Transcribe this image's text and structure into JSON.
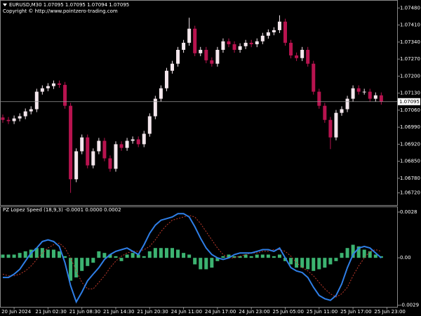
{
  "chart_data": [
    {
      "type": "candlestick",
      "title": "EURUSD,M30  1.07095 1.07095 1.07094 1.07095",
      "subtitle": "Copyright © http://www.pointzero-trading.com",
      "categories": [
        null,
        null,
        "20 Jun 2024",
        null,
        null,
        null,
        null,
        null,
        "21 Jun 02:30",
        null,
        null,
        null,
        null,
        null,
        "21 Jun 08:30",
        null,
        null,
        null,
        null,
        null,
        "21 Jun 14:30",
        null,
        null,
        null,
        null,
        null,
        "21 Jun 20:30",
        null,
        null,
        null,
        null,
        null,
        "24 Jun 11:00",
        null,
        null,
        null,
        null,
        null,
        "24 Jun 17:00",
        null,
        null,
        null,
        null,
        null,
        "24 Jun 23:00",
        null,
        null,
        null,
        null,
        null,
        "25 Jun 05:00",
        null,
        null,
        null,
        null,
        null,
        "25 Jun 11:00",
        null,
        null,
        null,
        null,
        null,
        "25 Jun 17:00",
        null,
        null,
        null,
        null,
        null,
        "25 Jun 23:00"
      ],
      "open": [
        1.0703,
        1.0702,
        1.07015,
        1.07026,
        1.07035,
        1.07055,
        1.07064,
        1.07136,
        1.0715,
        1.07159,
        1.0717,
        1.07164,
        1.07078,
        1.06776,
        1.06891,
        1.06948,
        1.06833,
        1.06891,
        1.06934,
        1.06862,
        1.06819,
        1.0692,
        1.06905,
        1.06934,
        1.0694,
        1.0692,
        1.06963,
        1.07035,
        1.07107,
        1.0715,
        1.07222,
        1.07251,
        1.07308,
        1.07337,
        1.07395,
        1.07294,
        1.07308,
        1.07265,
        1.07251,
        1.07308,
        1.07343,
        1.07331,
        1.07308,
        1.07323,
        1.07337,
        1.07331,
        1.07343,
        1.07366,
        1.0738,
        1.07389,
        1.07424,
        1.07337,
        1.07285,
        1.07274,
        1.07308,
        1.07251,
        1.07136,
        1.07078,
        1.0702,
        1.06948,
        1.07049,
        1.07064,
        1.07107,
        1.0715,
        1.07136,
        1.07136,
        1.07107,
        1.07121,
        null
      ],
      "high": [
        1.07042,
        1.07032,
        1.07038,
        1.07047,
        1.07067,
        1.07076,
        1.07148,
        1.07162,
        1.07171,
        1.07182,
        1.07182,
        1.07176,
        1.0709,
        1.06903,
        1.0696,
        1.0696,
        1.06903,
        1.06946,
        1.06946,
        1.06874,
        1.06932,
        1.06932,
        1.06946,
        1.06952,
        1.06952,
        1.06975,
        1.07047,
        1.07119,
        1.07162,
        1.07234,
        1.07263,
        1.0732,
        1.07349,
        1.0744,
        1.07407,
        1.0732,
        1.0732,
        1.07277,
        1.0732,
        1.07355,
        1.07355,
        1.07343,
        1.07335,
        1.07349,
        1.07349,
        1.07355,
        1.07378,
        1.07392,
        1.07401,
        1.0745,
        1.07436,
        1.07349,
        1.07297,
        1.0732,
        1.0732,
        1.07263,
        1.07148,
        1.0709,
        1.07032,
        1.07061,
        1.07076,
        1.07119,
        1.07162,
        1.07162,
        1.07148,
        1.07148,
        1.07133,
        1.07133,
        null
      ],
      "low": [
        1.07008,
        1.07003,
        1.07003,
        1.07014,
        1.07023,
        1.07043,
        1.07052,
        1.07124,
        1.07138,
        1.07147,
        1.07152,
        1.07066,
        1.0672,
        1.06764,
        1.06879,
        1.06821,
        1.06821,
        1.06879,
        1.0685,
        1.06807,
        1.06807,
        1.06893,
        1.06893,
        1.06922,
        1.06908,
        1.06908,
        1.06951,
        1.07023,
        1.07095,
        1.07138,
        1.0721,
        1.07239,
        1.07296,
        1.07325,
        1.07282,
        1.07282,
        1.07253,
        1.07239,
        1.07239,
        1.07296,
        1.07319,
        1.07296,
        1.07296,
        1.07311,
        1.07319,
        1.07319,
        1.07331,
        1.07354,
        1.07368,
        1.07377,
        1.07325,
        1.07273,
        1.07262,
        1.07262,
        1.07239,
        1.07124,
        1.07066,
        1.07008,
        1.069,
        1.06936,
        1.07037,
        1.07052,
        1.07095,
        1.07124,
        1.07124,
        1.07095,
        1.07095,
        1.07083,
        null
      ],
      "close": [
        1.0702,
        1.07015,
        1.07026,
        1.07035,
        1.07055,
        1.07064,
        1.07136,
        1.0715,
        1.07159,
        1.0717,
        1.07164,
        1.07078,
        1.06776,
        1.06891,
        1.06948,
        1.06833,
        1.06891,
        1.06934,
        1.06862,
        1.06819,
        1.0692,
        1.06905,
        1.06934,
        1.0694,
        1.0692,
        1.06963,
        1.07035,
        1.07107,
        1.0715,
        1.07222,
        1.07251,
        1.07308,
        1.07337,
        1.07395,
        1.07294,
        1.07308,
        1.07265,
        1.07251,
        1.07308,
        1.07343,
        1.07331,
        1.07308,
        1.07323,
        1.07337,
        1.07331,
        1.07343,
        1.07366,
        1.0738,
        1.07389,
        1.07424,
        1.07337,
        1.07285,
        1.07274,
        1.07308,
        1.07251,
        1.07136,
        1.07078,
        1.0702,
        1.06948,
        1.07049,
        1.07064,
        1.07107,
        1.0715,
        1.07136,
        1.07136,
        1.07107,
        1.07121,
        1.07095,
        null
      ],
      "up_color": "#f3e6ec",
      "down_color": "#b8134f",
      "price_line": 1.07095,
      "ylim": [
        1.0667,
        1.0751
      ],
      "yticks": [
        {
          "value": 1.0748,
          "label": "1.07480"
        },
        {
          "value": 1.0741,
          "label": "1.07410"
        },
        {
          "value": 1.0734,
          "label": "1.07340"
        },
        {
          "value": 1.0727,
          "label": "1.07270"
        },
        {
          "value": 1.072,
          "label": "1.07200"
        },
        {
          "value": 1.0713,
          "label": "1.07130"
        },
        {
          "value": 1.0706,
          "label": "1.07060"
        },
        {
          "value": 1.0699,
          "label": "1.06990"
        },
        {
          "value": 1.0692,
          "label": "1.06920"
        },
        {
          "value": 1.0685,
          "label": "1.06850"
        },
        {
          "value": 1.0678,
          "label": "1.06780"
        },
        {
          "value": 1.0672,
          "label": "1.06720"
        }
      ]
    },
    {
      "type": "indicator",
      "title": "PZ Lopez Speed (18,9,3) -0.0001 0.0000 0.0002",
      "histogram": {
        "color": "#3cb371",
        "values": [
          0.0002,
          0.0002,
          0.0002,
          0.0003,
          0.0004,
          0.0005,
          0.0006,
          0.0006,
          0.0005,
          0.0005,
          0.0004,
          0.0001,
          -0.0014,
          -0.0012,
          -0.0008,
          -0.0005,
          -0.0003,
          0.0004,
          0.0003,
          0.0002,
          0.0001,
          -0.0002,
          0.0002,
          0.0003,
          0.0002,
          0.0001,
          0.0004,
          0.0006,
          0.0006,
          0.0006,
          0.0006,
          0.0005,
          0.0003,
          0.0002,
          -0.0004,
          -0.0007,
          -0.0007,
          -0.0006,
          -0.0002,
          0.0001,
          0.0002,
          0.0001,
          0.0001,
          0.0002,
          0.0001,
          0.0002,
          0.0002,
          0.0002,
          0.0001,
          0.0002,
          -0.0002,
          -0.0004,
          -0.0006,
          -0.0006,
          -0.0007,
          -0.0008,
          -0.0007,
          -0.0006,
          -0.0004,
          -0.0002,
          0.0003,
          0.0006,
          0.0008,
          0.0007,
          0.0005,
          0.0004,
          0.0002,
          0.0001,
          null
        ]
      },
      "speed": {
        "color": "#2f7fe8",
        "values": [
          -0.0012,
          -0.0012,
          -0.001,
          -0.0007,
          -0.0002,
          0.0003,
          0.0006,
          0.001,
          0.0011,
          0.001,
          0.0007,
          -0.0003,
          -0.0017,
          -0.0027,
          -0.0021,
          -0.0014,
          -0.001,
          -0.0006,
          -0.0001,
          0.0002,
          0.0004,
          0.0005,
          0.0006,
          0.0004,
          0.0002,
          0.0008,
          0.0015,
          0.002,
          0.0023,
          0.0024,
          0.0025,
          0.0027,
          0.0027,
          0.0025,
          0.0019,
          0.0012,
          0.0006,
          0.0002,
          0,
          -0.0001,
          0,
          0.0002,
          0.0003,
          0.0003,
          0.0003,
          0.0004,
          0.0005,
          0.0005,
          0.0004,
          0.0006,
          0,
          -0.0006,
          -0.0008,
          -0.0009,
          -0.0012,
          -0.0018,
          -0.0023,
          -0.0025,
          -0.0026,
          -0.0023,
          -0.0016,
          -0.0006,
          0.0002,
          0.0006,
          0.0007,
          0.0006,
          0.0003,
          0,
          null
        ]
      },
      "signal": {
        "color": "#c0392b",
        "dashed": true,
        "values": [
          -0.001,
          -0.0011,
          -0.0011,
          -0.001,
          -0.0008,
          -0.0005,
          -0.0001,
          0.0003,
          0.0006,
          0.0008,
          0.0009,
          0.0006,
          0,
          -0.0008,
          -0.0015,
          -0.0019,
          -0.0019,
          -0.0015,
          -0.0011,
          -0.0006,
          -0.0002,
          0.0001,
          0.0003,
          0.0004,
          0.0004,
          0.0005,
          0.0007,
          0.0011,
          0.0016,
          0.002,
          0.0023,
          0.0024,
          0.0025,
          0.0026,
          0.0025,
          0.0021,
          0.0016,
          0.0011,
          0.0006,
          0.0002,
          0,
          0,
          0.0001,
          0.0002,
          0.0003,
          0.0003,
          0.0004,
          0.0004,
          0.0005,
          0.0005,
          0.0004,
          0.0001,
          -0.0003,
          -0.0006,
          -0.0008,
          -0.0011,
          -0.0015,
          -0.0019,
          -0.0022,
          -0.0024,
          -0.0022,
          -0.0018,
          -0.0011,
          -0.0005,
          0,
          0.0004,
          0.0005,
          0.0004,
          null
        ]
      },
      "ylim": [
        -0.003,
        0.0031
      ],
      "yticks": [
        0.0028,
        {
          "value": 0,
          "label": "0.00"
        },
        -0.0029
      ]
    }
  ]
}
